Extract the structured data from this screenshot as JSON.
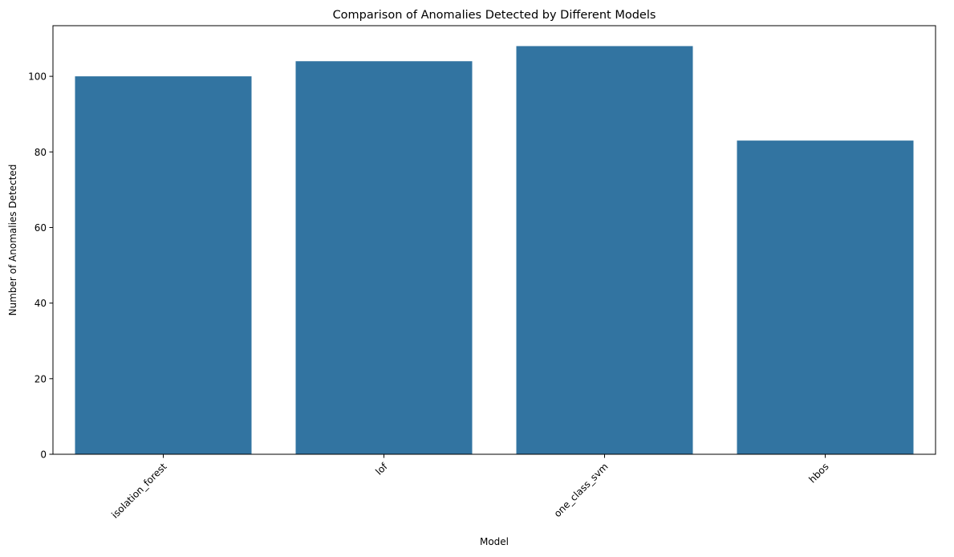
{
  "chart_data": {
    "type": "bar",
    "title": "Comparison of Anomalies Detected by Different Models",
    "xlabel": "Model",
    "ylabel": "Number of Anomalies Detected",
    "categories": [
      "isolation_forest",
      "lof",
      "one_class_svm",
      "hbos"
    ],
    "values": [
      100,
      104,
      108,
      83
    ],
    "ylim": [
      0,
      113.4
    ],
    "yticks": [
      0,
      20,
      40,
      60,
      80,
      100
    ],
    "bar_color": "#3274a1",
    "grid": false,
    "legend": "none"
  }
}
